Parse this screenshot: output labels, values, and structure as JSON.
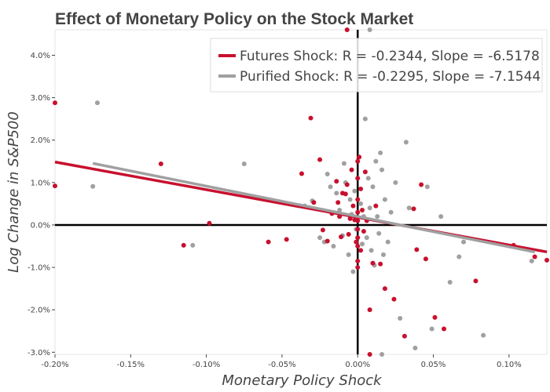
{
  "chart_data": {
    "type": "scatter",
    "title": "Effect of Monetary Policy on the Stock Market",
    "xlabel": "Monetary Policy Shock",
    "ylabel": "Log Change in S&P500",
    "xlim": [
      -0.002,
      0.00125
    ],
    "ylim": [
      -0.0305,
      0.046
    ],
    "x_ticks": [
      -0.002,
      -0.0015,
      -0.001,
      -0.0005,
      0,
      0.0005,
      0.001
    ],
    "x_tick_labels": [
      "-0.20%",
      "-0.15%",
      "-0.10%",
      "-0.05%",
      "0.00%",
      "0.05%",
      "0.10%"
    ],
    "y_ticks": [
      -0.03,
      -0.02,
      -0.01,
      0,
      0.01,
      0.02,
      0.03,
      0.04
    ],
    "y_tick_labels": [
      "-3.0%",
      "-2.0%",
      "-1.0%",
      "0.0%",
      "1.0%",
      "2.0%",
      "3.0%",
      "4.0%"
    ],
    "zero_lines": true,
    "grid": false,
    "legend_position": "top-right",
    "series": [
      {
        "name": "Futures Shock: R = -0.2344, Slope = -6.5178",
        "color": "#c8102e",
        "fit": {
          "slope": -6.5178,
          "intercept": 0.0018,
          "x_range": [
            -0.002,
            0.00125
          ]
        },
        "points": [
          [
            -0.002,
            0.0288
          ],
          [
            -0.002,
            0.0092
          ],
          [
            -0.0013,
            0.0144
          ],
          [
            -0.00115,
            -0.0048
          ],
          [
            -0.00098,
            0.0004
          ],
          [
            -0.00059,
            -0.004
          ],
          [
            -0.00047,
            -0.0034
          ],
          [
            -0.00037,
            0.0121
          ],
          [
            -0.00031,
            0.0252
          ],
          [
            -0.00029,
            0.0053
          ],
          [
            -0.00025,
            0.0154
          ],
          [
            -0.00023,
            -0.0012
          ],
          [
            -0.0002,
            -0.0038
          ],
          [
            -0.00017,
            0.0027
          ],
          [
            -0.00014,
            0.0103
          ],
          [
            -0.00013,
            0.0053
          ],
          [
            -0.00012,
            0.002
          ],
          [
            -0.00011,
            -0.0028
          ],
          [
            -0.0001,
            0.0075
          ],
          [
            -8e-05,
            0.0073
          ],
          [
            -7e-05,
            0.0095
          ],
          [
            -6e-05,
            -0.0022
          ],
          [
            -5e-05,
            0.0015
          ],
          [
            -4e-05,
            0.013
          ],
          [
            -3e-05,
            0.0045
          ],
          [
            -2e-05,
            0.0012
          ],
          [
            -1e-05,
            -0.004
          ],
          [
            0.0,
            0.015
          ],
          [
            0.0,
            0.011
          ],
          [
            0.0,
            0.006
          ],
          [
            0.0,
            0.003
          ],
          [
            0.0,
            0.001
          ],
          [
            0.0,
            -0.001
          ],
          [
            0.0,
            -0.003
          ],
          [
            0.0,
            -0.005
          ],
          [
            0.0,
            -0.0085
          ],
          [
            0.0,
            -0.01
          ],
          [
            1e-05,
            0.016
          ],
          [
            2e-05,
            0.0085
          ],
          [
            2e-05,
            -0.006
          ],
          [
            3e-05,
            0.0035
          ],
          [
            4e-05,
            -0.0015
          ],
          [
            5e-05,
            0.0125
          ],
          [
            6e-05,
            0.001
          ],
          [
            8e-05,
            -0.02
          ],
          [
            0.0001,
            -0.009
          ],
          [
            0.00012,
            0.0045
          ],
          [
            0.00015,
            -0.0092
          ],
          [
            0.00018,
            -0.015
          ],
          [
            0.00024,
            -0.0175
          ],
          [
            0.00031,
            -0.0262
          ],
          [
            0.00037,
            0.0038
          ],
          [
            0.00039,
            -0.0058
          ],
          [
            0.00042,
            0.0095
          ],
          [
            0.00045,
            -0.008
          ],
          [
            0.00051,
            -0.0218
          ],
          [
            0.00057,
            -0.0245
          ],
          [
            0.00078,
            -0.0132
          ],
          [
            0.00103,
            -0.0048
          ],
          [
            0.00117,
            -0.0075
          ],
          [
            0.00125,
            -0.0083
          ],
          [
            -7e-05,
            0.046
          ],
          [
            8e-05,
            -0.0315
          ]
        ]
      },
      {
        "name": "Purified Shock: R = -0.2295, Slope = -7.1544",
        "color": "#a0a0a0",
        "fit": {
          "slope": -7.1544,
          "intercept": 0.002,
          "x_range": [
            -0.00175,
            0.00117
          ]
        },
        "points": [
          [
            -0.00172,
            0.0288
          ],
          [
            -0.00175,
            0.0091
          ],
          [
            -0.00109,
            -0.0048
          ],
          [
            -0.00075,
            0.0144
          ],
          [
            -0.00035,
            0.0045
          ],
          [
            -0.0003,
            0.0057
          ],
          [
            -0.00025,
            -0.003
          ],
          [
            -0.00022,
            -0.004
          ],
          [
            -0.0002,
            0.012
          ],
          [
            -0.00018,
            0.009
          ],
          [
            -0.00016,
            -0.005
          ],
          [
            -0.00014,
            0.0075
          ],
          [
            -0.00012,
            0.0035
          ],
          [
            -0.0001,
            -0.0025
          ],
          [
            -9e-05,
            0.0145
          ],
          [
            -8e-05,
            0.01
          ],
          [
            -6e-05,
            -0.007
          ],
          [
            -5e-05,
            0.006
          ],
          [
            -4e-05,
            0.0025
          ],
          [
            -3e-05,
            -0.011
          ],
          [
            -2e-05,
            0.008
          ],
          [
            -1e-05,
            -0.001
          ],
          [
            2e-05,
            0.005
          ],
          [
            3e-05,
            -0.0045
          ],
          [
            4e-05,
            0.002
          ],
          [
            5e-05,
            0.025
          ],
          [
            6e-05,
            -0.003
          ],
          [
            7e-05,
            0.011
          ],
          [
            8e-05,
            0.004
          ],
          [
            9e-05,
            -0.006
          ],
          [
            0.0001,
            0.009
          ],
          [
            0.00011,
            -0.0095
          ],
          [
            0.00012,
            0.015
          ],
          [
            0.00013,
            0.002
          ],
          [
            0.00014,
            -0.002
          ],
          [
            0.00015,
            0.017
          ],
          [
            0.00016,
            0.013
          ],
          [
            0.00017,
            -0.007
          ],
          [
            0.00018,
            0.006
          ],
          [
            0.0002,
            -0.004
          ],
          [
            0.00022,
            0.003
          ],
          [
            0.00025,
            0.01
          ],
          [
            0.00028,
            -0.022
          ],
          [
            0.00032,
            0.0195
          ],
          [
            0.00034,
            0.004
          ],
          [
            0.00038,
            -0.029
          ],
          [
            0.00046,
            0.009
          ],
          [
            0.00049,
            -0.0245
          ],
          [
            0.00055,
            0.002
          ],
          [
            0.00061,
            -0.0135
          ],
          [
            0.00067,
            -0.0075
          ],
          [
            0.00083,
            -0.026
          ],
          [
            0.0007,
            -0.004
          ],
          [
            0.00115,
            -0.0085
          ],
          [
            8e-05,
            0.047
          ],
          [
            0.00016,
            -0.031
          ]
        ]
      }
    ]
  }
}
